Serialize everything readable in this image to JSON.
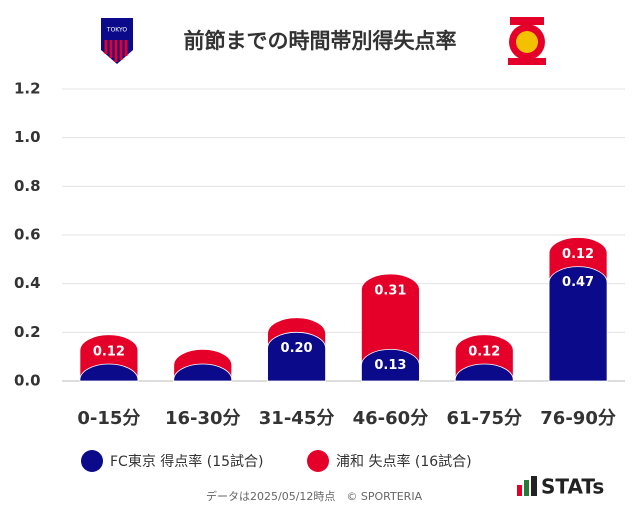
{
  "chart_data": {
    "type": "bar",
    "stacked": true,
    "title": "前節までの時間帯別得失点率",
    "categories": [
      "0-15分",
      "16-30分",
      "31-45分",
      "46-60分",
      "61-75分",
      "76-90分"
    ],
    "series": [
      {
        "name": "FC東京 得点率 (15試合)",
        "color": "#0b0a8a",
        "values": [
          0.07,
          0.07,
          0.2,
          0.13,
          0.07,
          0.47
        ],
        "value_labels": [
          null,
          null,
          "0.20",
          "0.13",
          null,
          "0.47"
        ]
      },
      {
        "name": "浦和 失点率 (16試合)",
        "color": "#e5002a",
        "values": [
          0.12,
          0.06,
          0.06,
          0.31,
          0.12,
          0.12
        ],
        "value_labels": [
          "0.12",
          null,
          null,
          "0.31",
          "0.12",
          "0.12"
        ]
      }
    ],
    "ylim": [
      0,
      1.2
    ],
    "yticks": [
      {
        "value": 0,
        "label": "0.0"
      },
      0.2,
      0.4,
      0.6,
      0.8,
      {
        "value": 1,
        "label": "1.0"
      },
      1.2
    ],
    "grid": true,
    "footnote": "データは2025/05/12時点　© SPORTERIA",
    "brand": "STATs"
  }
}
